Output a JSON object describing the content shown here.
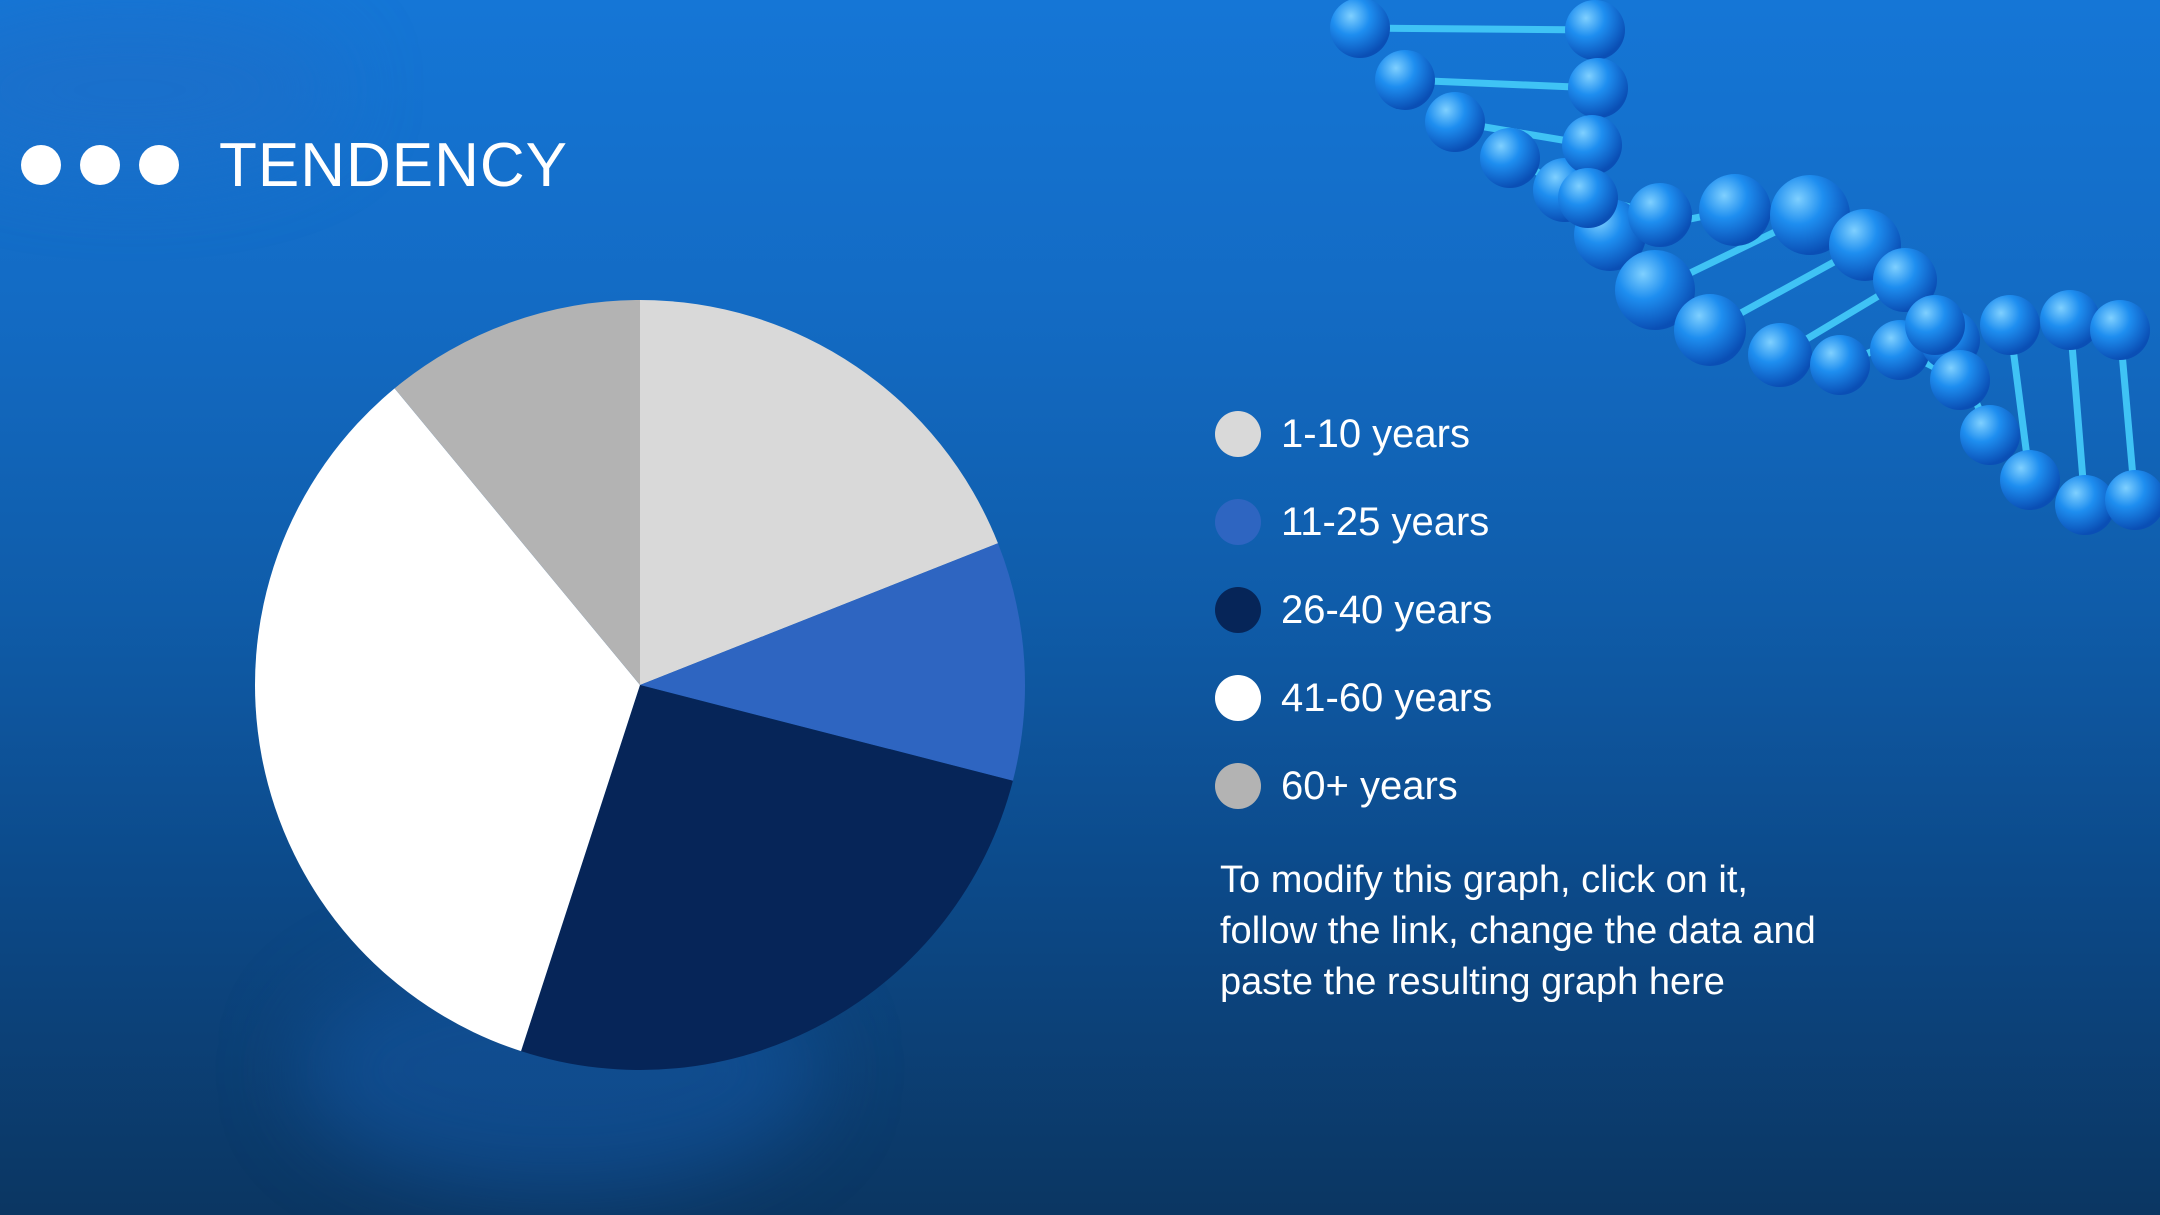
{
  "slide": {
    "title": "TENDENCY",
    "note_lines": [
      "To modify this graph, click on it,",
      "follow the link, change the data and",
      "paste the resulting graph here"
    ]
  },
  "chart_data": {
    "type": "pie",
    "categories": [
      "1-10 years",
      "11-25 years",
      "26-40 years",
      "41-60 years",
      "60+ years"
    ],
    "values": [
      19,
      10,
      26,
      34,
      11
    ],
    "colors": [
      "#d9d9d9",
      "#2e65c1",
      "#062558",
      "#ffffff",
      "#b3b3b3"
    ],
    "start_angle_deg": 0,
    "direction": "clockwise",
    "legend": "right"
  }
}
